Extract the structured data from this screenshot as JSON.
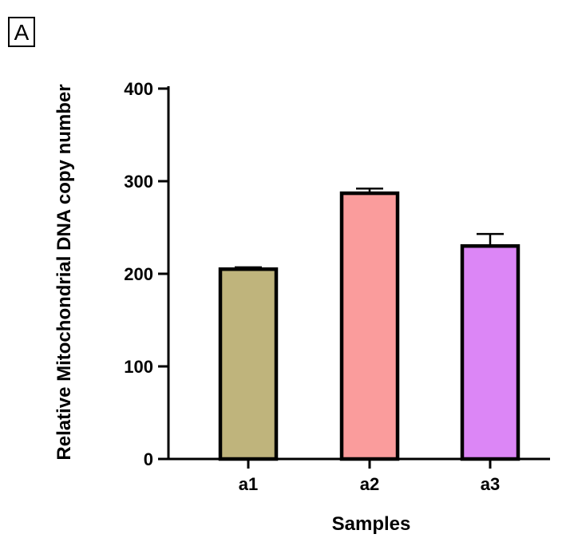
{
  "panel_label": "A",
  "chart_data": {
    "type": "bar",
    "categories": [
      "a1",
      "a2",
      "a3"
    ],
    "values": [
      205,
      287,
      230
    ],
    "errors": [
      2,
      5,
      13
    ],
    "bar_colors": [
      "#BFB47C",
      "#FA9C9C",
      "#DC86F6"
    ],
    "title": "",
    "xlabel": "Samples",
    "ylabel": "Relative Mitochondrial  DNA copy number",
    "ylim": [
      0,
      400
    ],
    "yticks": [
      "0",
      "100",
      "200",
      "300",
      "400"
    ],
    "grid": false,
    "legend": "none"
  }
}
